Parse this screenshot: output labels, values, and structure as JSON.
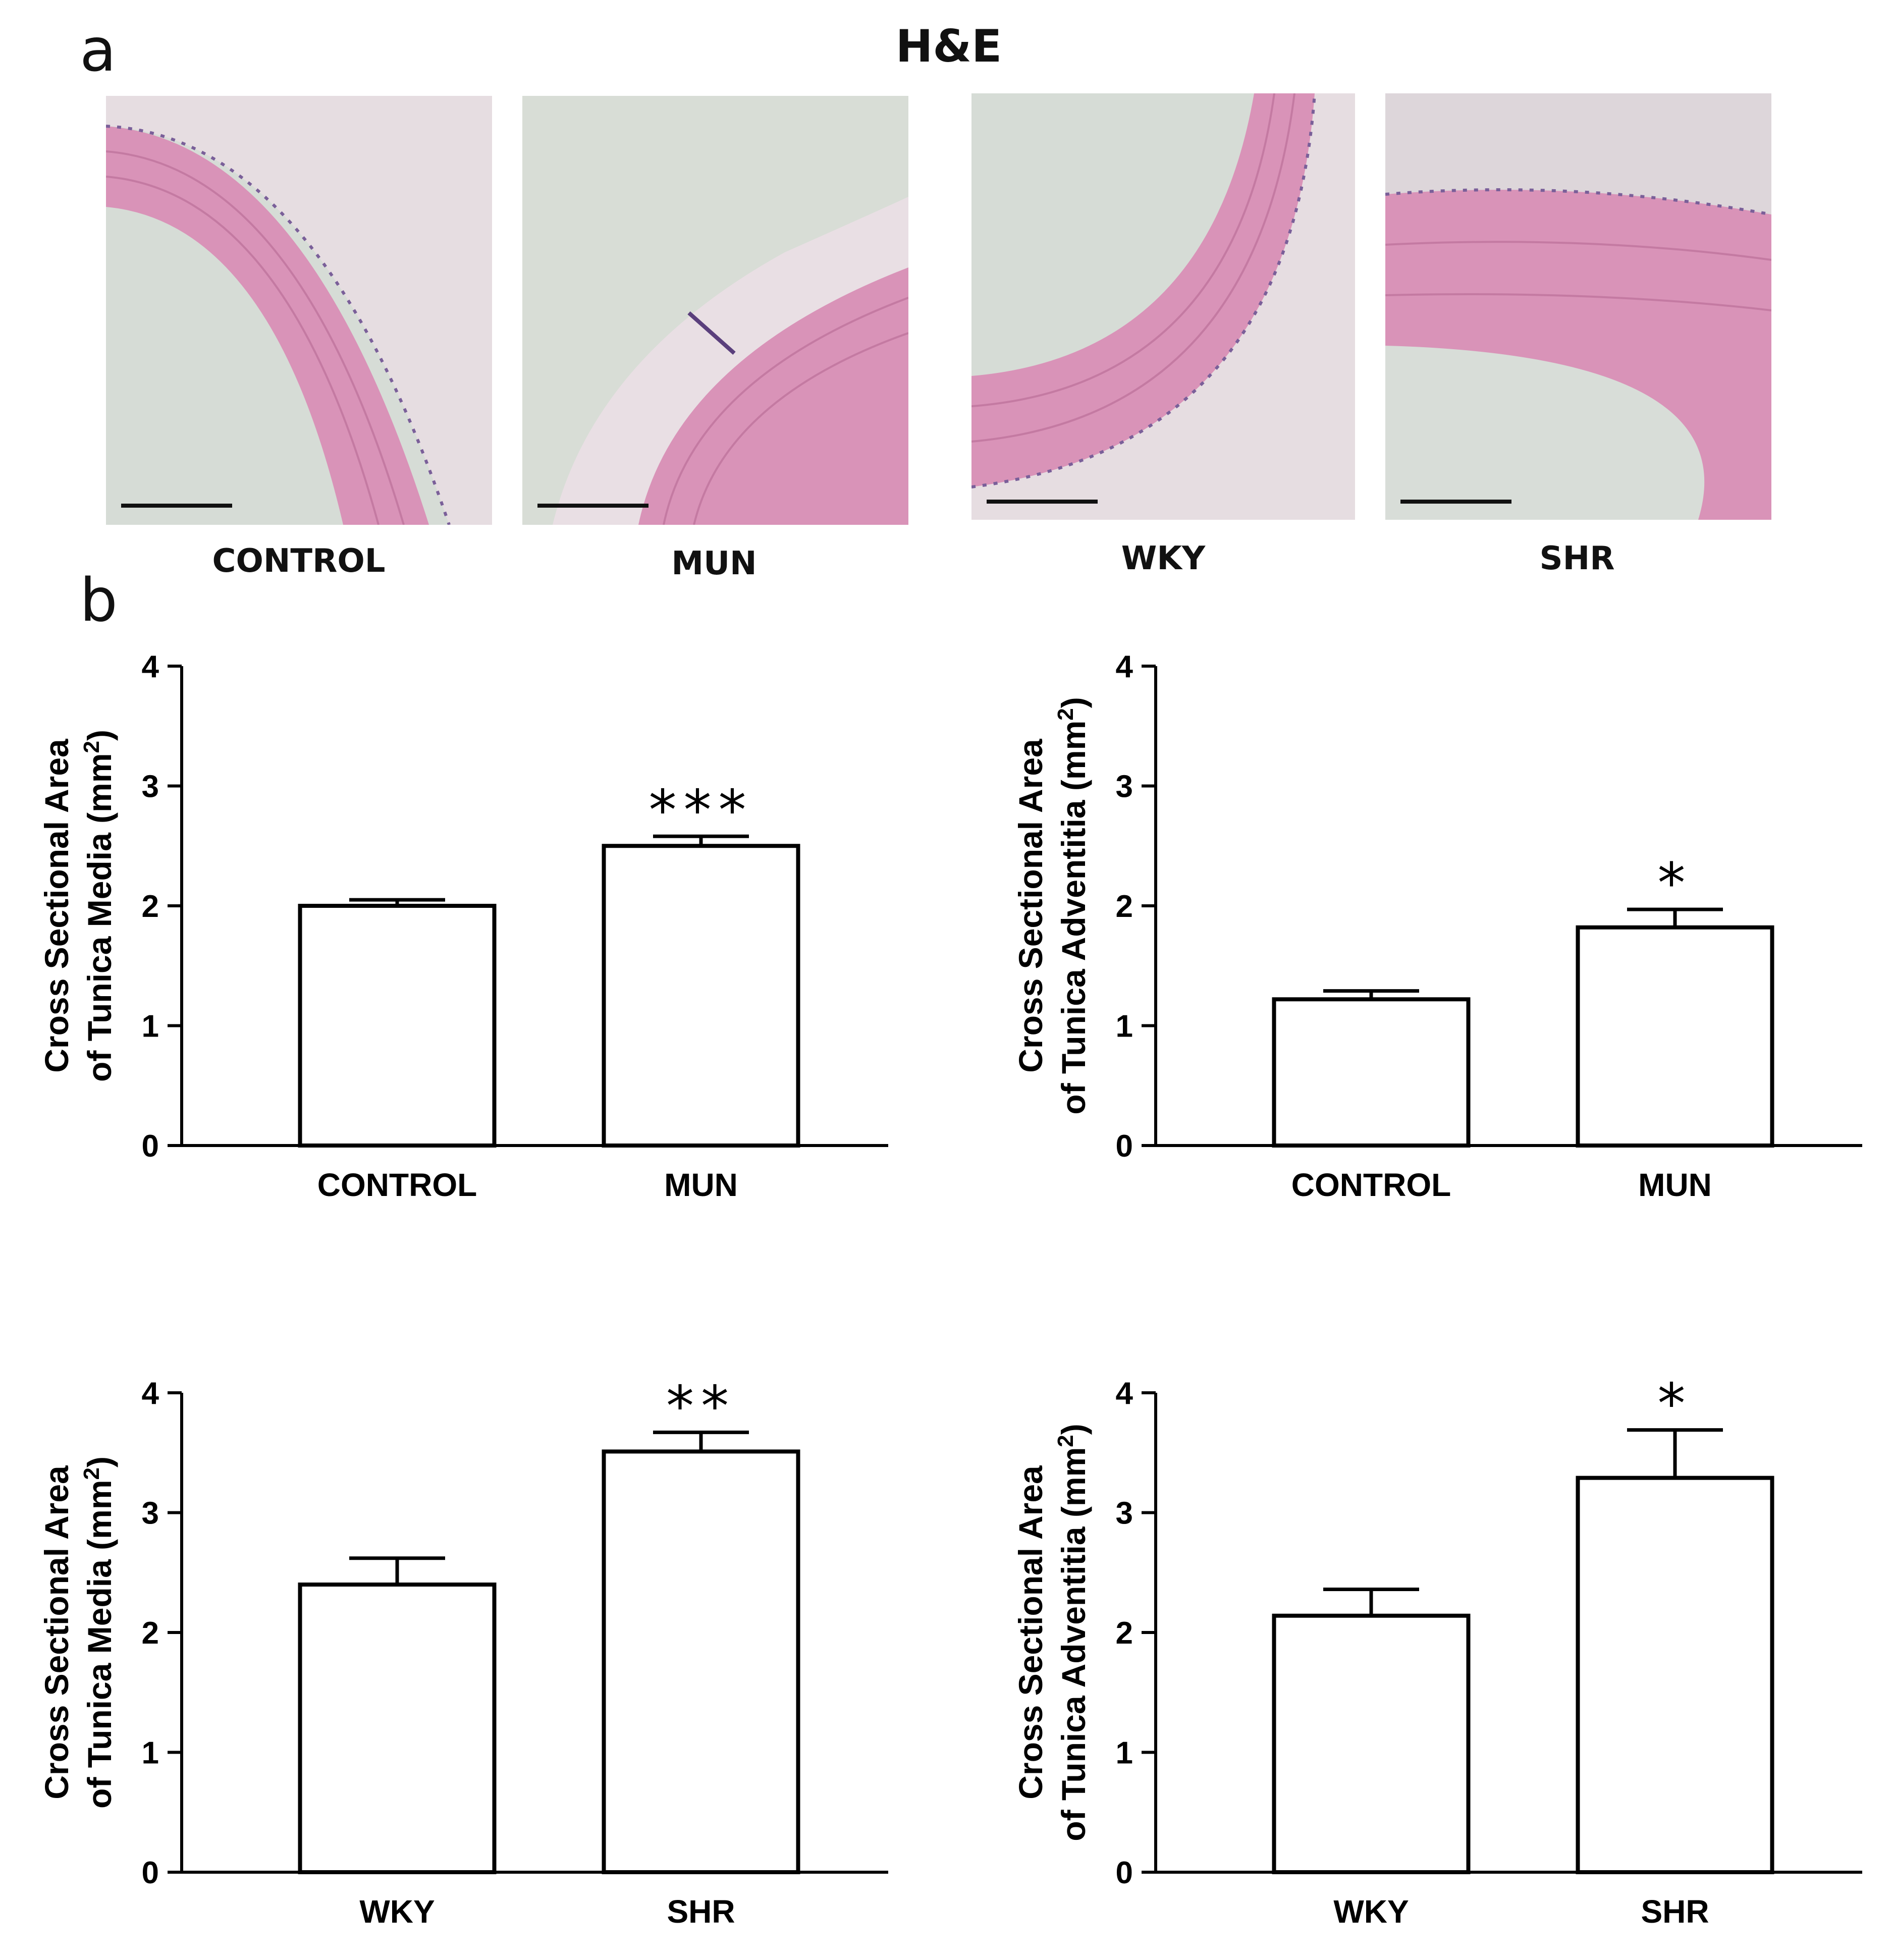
{
  "panel_a": {
    "letter": "a",
    "title": "H&E",
    "images": [
      {
        "label": "CONTROL",
        "icon": "artery-cross-section-control-image"
      },
      {
        "label": "MUN",
        "icon": "artery-cross-section-mun-image"
      },
      {
        "label": "WKY",
        "icon": "artery-cross-section-wky-image"
      },
      {
        "label": "SHR",
        "icon": "artery-cross-section-shr-image"
      }
    ],
    "colors": {
      "lumen": "#d6dcd6",
      "media": "#d98fb5",
      "adventitia": "#e8d8df",
      "nuclei": "#6a4f8c"
    }
  },
  "panel_b": {
    "letter": "b"
  },
  "chart_data": [
    {
      "type": "bar",
      "categories": [
        "CONTROL",
        "MUN"
      ],
      "values": [
        2.0,
        2.5
      ],
      "errors": [
        0.05,
        0.08
      ],
      "significance": [
        "",
        "***"
      ],
      "ylabel_line1": "Cross Sectional Area",
      "ylabel_line2": "of Tunica Media (mm",
      "ylabel_sup": "2",
      "ylabel_close": ")",
      "ylim": [
        0,
        4
      ],
      "yticks": [
        0,
        1,
        2,
        3,
        4
      ],
      "bar_fill": "#ffffff",
      "bar_stroke": "#000000"
    },
    {
      "type": "bar",
      "categories": [
        "CONTROL",
        "MUN"
      ],
      "values": [
        1.22,
        1.82
      ],
      "errors": [
        0.07,
        0.15
      ],
      "significance": [
        "",
        "*"
      ],
      "ylabel_line1": "Cross Sectional Area",
      "ylabel_line2": "of Tunica Adventitia (mm",
      "ylabel_sup": "2",
      "ylabel_close": ")",
      "ylim": [
        0,
        4
      ],
      "yticks": [
        0,
        1,
        2,
        3,
        4
      ],
      "bar_fill": "#ffffff",
      "bar_stroke": "#000000"
    },
    {
      "type": "bar",
      "categories": [
        "WKY",
        "SHR"
      ],
      "values": [
        2.4,
        3.51
      ],
      "errors": [
        0.22,
        0.16
      ],
      "significance": [
        "",
        "**"
      ],
      "ylabel_line1": "Cross Sectional Area",
      "ylabel_line2": "of Tunica Media (mm",
      "ylabel_sup": "2",
      "ylabel_close": ")",
      "ylim": [
        0,
        4
      ],
      "yticks": [
        0,
        1,
        2,
        3,
        4
      ],
      "bar_fill": "#ffffff",
      "bar_stroke": "#000000"
    },
    {
      "type": "bar",
      "categories": [
        "WKY",
        "SHR"
      ],
      "values": [
        2.14,
        3.29
      ],
      "errors": [
        0.22,
        0.4
      ],
      "significance": [
        "",
        "*"
      ],
      "ylabel_line1": "Cross Sectional Area",
      "ylabel_line2": "of Tunica Adventitia (mm",
      "ylabel_sup": "2",
      "ylabel_close": ")",
      "ylim": [
        0,
        4
      ],
      "yticks": [
        0,
        1,
        2,
        3,
        4
      ],
      "bar_fill": "#ffffff",
      "bar_stroke": "#000000"
    }
  ]
}
